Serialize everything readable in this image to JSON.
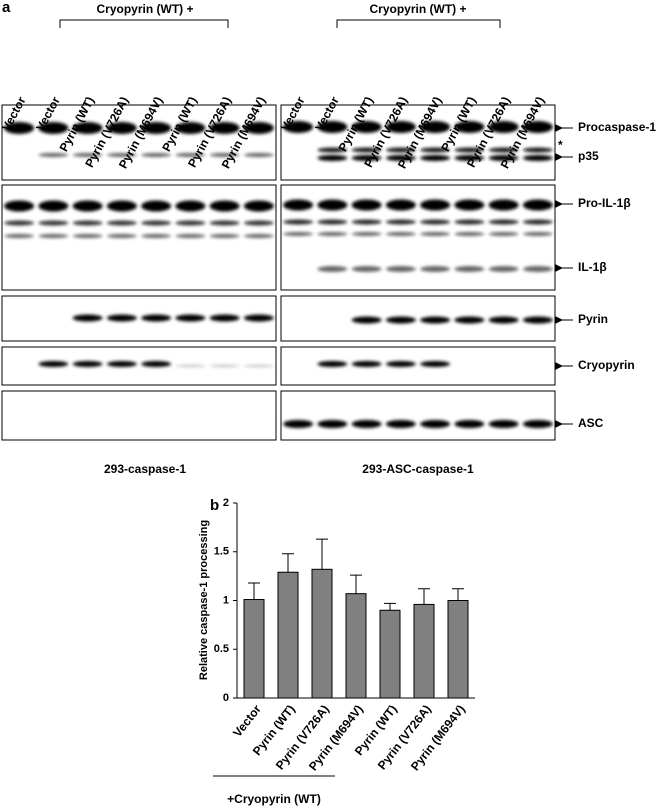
{
  "panel_a": {
    "label": "a",
    "group_label_left": "Cryopyrin (WT) +",
    "group_label_right": "Cryopyrin (WT) +",
    "lanes_left": [
      "Vector",
      "Vector",
      "Pyrin (WT)",
      "Pyrin (V726A)",
      "Pyrin (M694V)",
      "Pyrin (WT)",
      "Pyrin (V726A)",
      "Pyrin (M694V)"
    ],
    "lanes_right": [
      "Vector",
      "Vector",
      "Pyrin (WT)",
      "Pyrin (V726A)",
      "Pyrin (M694V)",
      "Pyrin (WT)",
      "Pyrin (V726A)",
      "Pyrin (M694V)"
    ],
    "blot_labels": [
      "Procaspase-1",
      "*",
      "p35",
      "Pro-IL-1β",
      "IL-1β",
      "Pyrin",
      "Cryopyrin",
      "ASC"
    ],
    "cell_line_left": "293-caspase-1",
    "cell_line_right": "293-ASC-caspase-1"
  },
  "panel_b": {
    "label": "b",
    "group_label": "+Cryopyrin (WT)"
  },
  "chart_data": {
    "type": "bar",
    "y_label": "Relative caspase-1 processing",
    "categories": [
      "Vector",
      "Pyrin (WT)",
      "Pyrin (V726A)",
      "Pyrin (M694V)",
      "Pyrin (WT)",
      "Pyrin (V726A)",
      "Pyrin (M694V)"
    ],
    "values": [
      1.01,
      1.29,
      1.32,
      1.07,
      0.9,
      0.96,
      1.0
    ],
    "errors": [
      0.17,
      0.19,
      0.31,
      0.19,
      0.07,
      0.16,
      0.12
    ],
    "color": "#808080",
    "ylim": [
      0,
      2
    ],
    "yticks": [
      0,
      0.5,
      1,
      1.5,
      2
    ]
  }
}
